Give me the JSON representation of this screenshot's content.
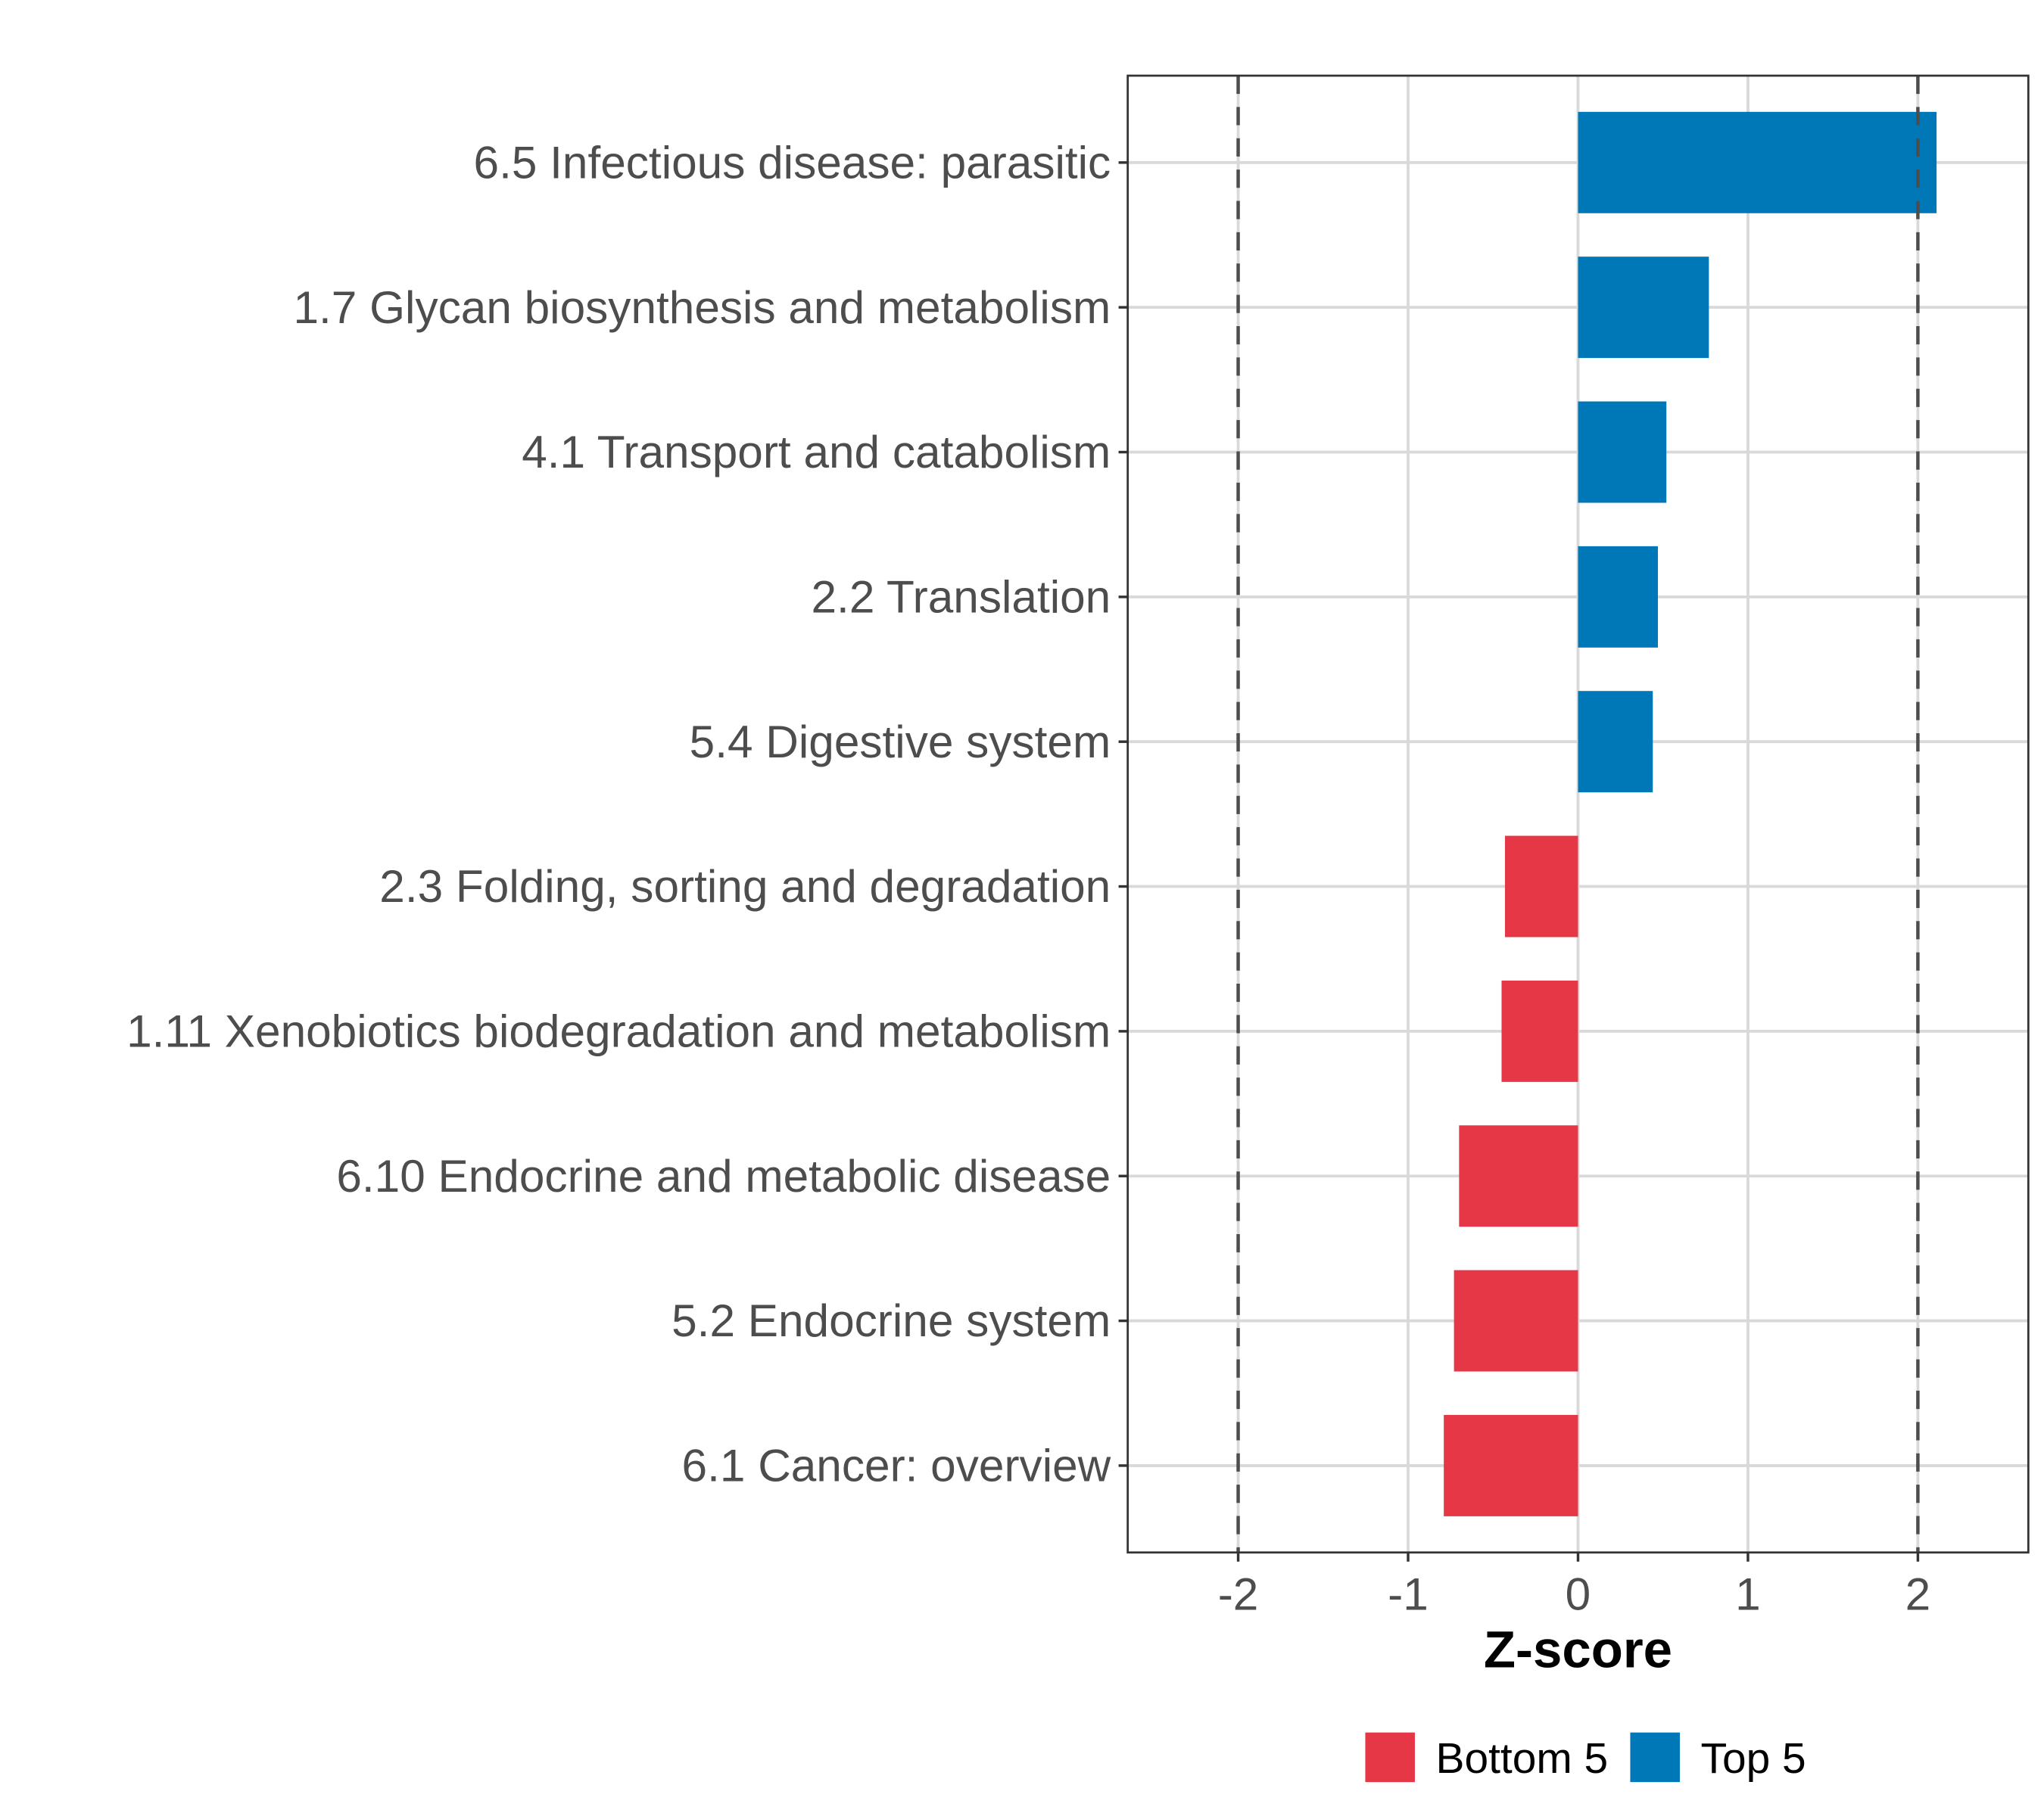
{
  "chart_data": {
    "type": "bar",
    "orientation": "horizontal",
    "title": "",
    "xlabel": "Z-score",
    "ylabel": "",
    "xlim": [
      -2.65,
      2.65
    ],
    "x_ticks": [
      -2,
      -1,
      0,
      1,
      2
    ],
    "x_tick_labels": [
      "-2",
      "-1",
      "0",
      "1",
      "2"
    ],
    "reference_lines": [
      -2,
      2
    ],
    "grid": true,
    "legend_position": "bottom",
    "legend": [
      {
        "name": "Bottom 5",
        "color": "#E63746"
      },
      {
        "name": "Top 5",
        "color": "#0077B6"
      }
    ],
    "categories": [
      "6.5 Infectious disease: parasitic",
      "1.7 Glycan biosynthesis and metabolism",
      "4.1 Transport and catabolism",
      "2.2 Translation",
      "5.4 Digestive system",
      "2.3 Folding, sorting and degradation",
      "1.11 Xenobiotics biodegradation and metabolism",
      "6.10 Endocrine and metabolic disease",
      "5.2 Endocrine system",
      "6.1 Cancer: overview"
    ],
    "values": [
      2.11,
      0.77,
      0.52,
      0.47,
      0.44,
      -0.43,
      -0.45,
      -0.7,
      -0.73,
      -0.79
    ],
    "groups": [
      "Top 5",
      "Top 5",
      "Top 5",
      "Top 5",
      "Top 5",
      "Bottom 5",
      "Bottom 5",
      "Bottom 5",
      "Bottom 5",
      "Bottom 5"
    ]
  }
}
